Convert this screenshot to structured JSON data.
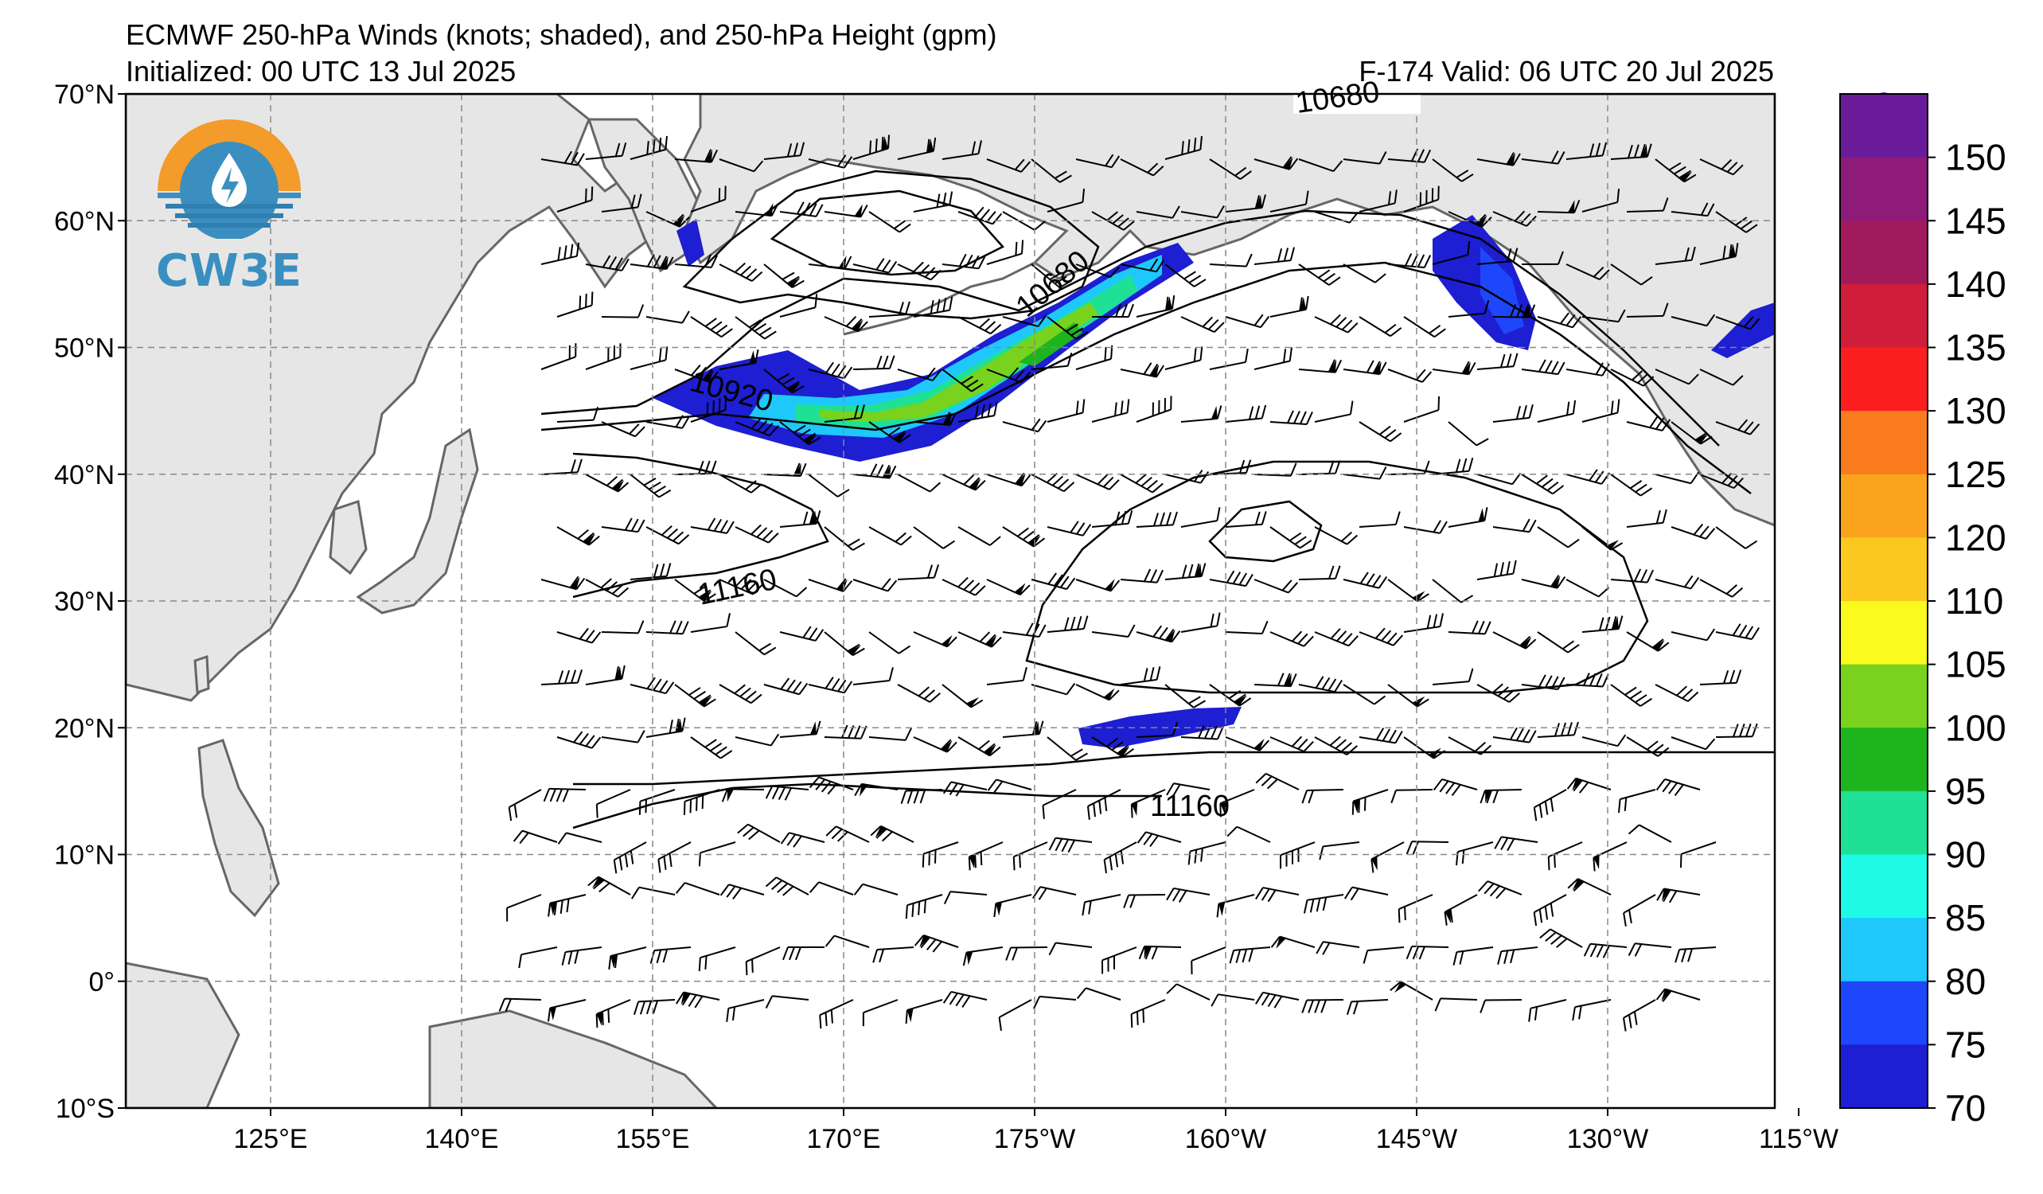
{
  "title": {
    "line1": "ECMWF 250-hPa Winds (knots; shaded), and 250-hPa Height (gpm)",
    "initialized": "Initialized: 00 UTC 13 Jul 2025",
    "valid": "F-174  Valid: 06 UTC 20 Jul 2025"
  },
  "logo": {
    "text": "CW3E",
    "icon": "water-drop-lightning-logo"
  },
  "axes": {
    "lon_ticks": [
      "125°E",
      "140°E",
      "155°E",
      "170°E",
      "175°W",
      "160°W",
      "145°W",
      "130°W",
      "115°W"
    ],
    "lat_ticks": [
      "70°N",
      "60°N",
      "50°N",
      "40°N",
      "30°N",
      "20°N",
      "10°N",
      "0°",
      "10°S"
    ]
  },
  "contour_labels": [
    {
      "text": "10680"
    },
    {
      "text": "10680"
    },
    {
      "text": "10920"
    },
    {
      "text": "11160"
    },
    {
      "text": "11160"
    }
  ],
  "colorbar": {
    "labels": [
      "150",
      "145",
      "140",
      "135",
      "130",
      "125",
      "120",
      "110",
      "105",
      "100",
      "95",
      "90",
      "85",
      "80",
      "75",
      "70"
    ],
    "colors": [
      "#6a1b9a",
      "#8e1a7a",
      "#a01a5c",
      "#d01e3a",
      "#fa1e1e",
      "#fa7a1e",
      "#faa41e",
      "#fac81e",
      "#fafa1e",
      "#78d21e",
      "#1eb41e",
      "#1ee196",
      "#1efae6",
      "#1ec8fa",
      "#1e46fa",
      "#1e1ed2"
    ]
  },
  "colors": {
    "land": "#e6e6e6",
    "coast": "#666666",
    "grid": "#888888",
    "contour": "#000000"
  }
}
